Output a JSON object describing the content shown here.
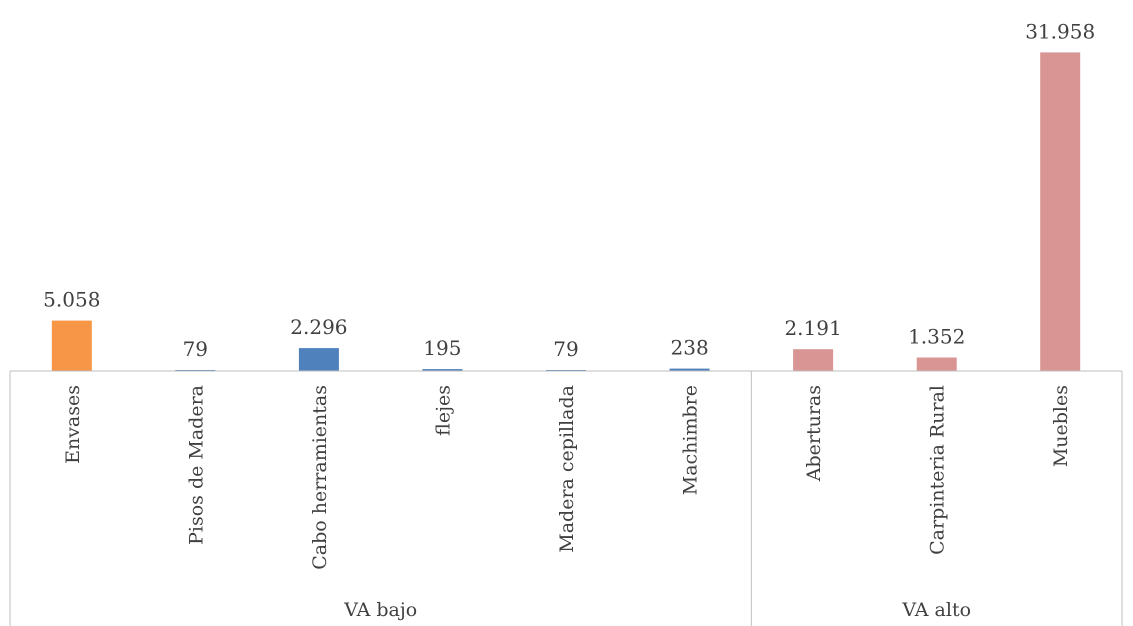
{
  "chart_data": {
    "type": "bar",
    "categories": [
      "Envases",
      "Pisos de Madera",
      "Cabo herramientas",
      "flejes",
      "Madera cepillada",
      "Machimbre",
      "Aberturas",
      "Carpinteria Rural",
      "Muebles"
    ],
    "values": [
      5058,
      79,
      2296,
      195,
      79,
      238,
      2191,
      1352,
      31958
    ],
    "data_labels": [
      "5.058",
      "79",
      "2.296",
      "195",
      "79",
      "238",
      "2.191",
      "1.352",
      "31.958"
    ],
    "bar_colors": [
      "#f79646",
      "#4f81bd",
      "#4f81bd",
      "#4f81bd",
      "#4f81bd",
      "#4f81bd",
      "#d99594",
      "#d99594",
      "#d99594"
    ],
    "groups": [
      {
        "label": "VA bajo",
        "count": 6
      },
      {
        "label": "VA alto",
        "count": 3
      }
    ],
    "ylim": [
      0,
      32000
    ],
    "grid": false,
    "legend": "none",
    "axis_color": "#bfbfbf",
    "text_color": "#404040"
  }
}
